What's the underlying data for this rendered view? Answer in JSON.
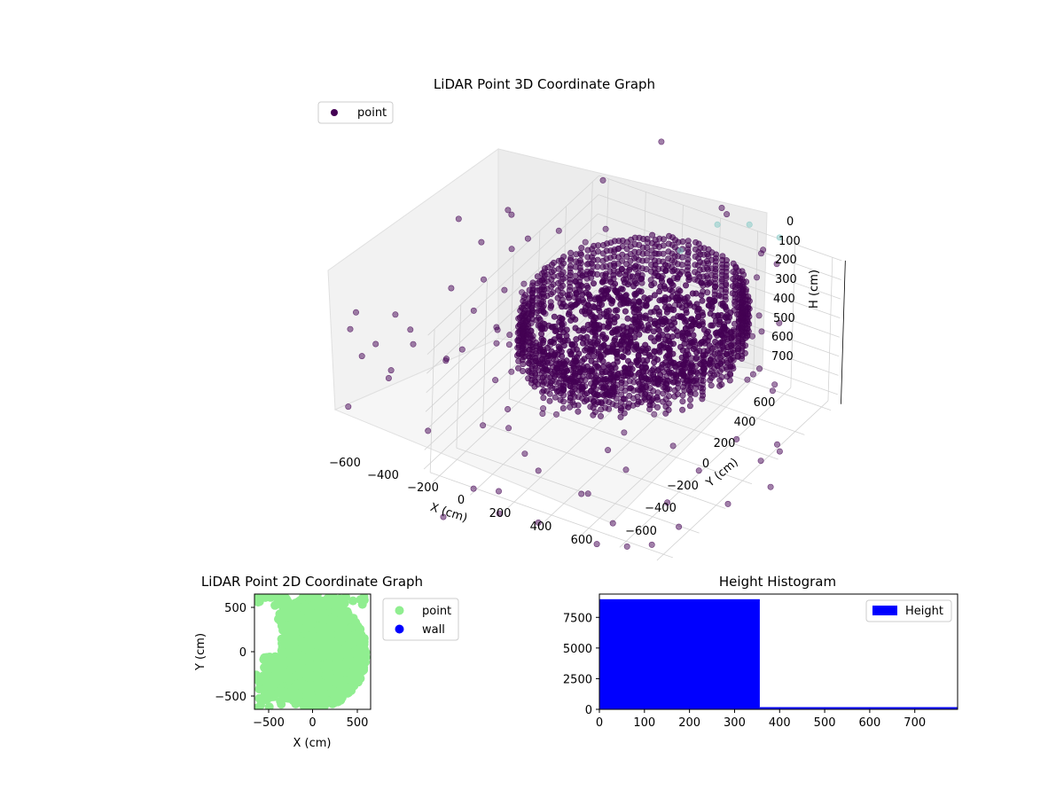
{
  "colors": {
    "point3d": "#440154",
    "point3d_far": "#7fc7c4",
    "point2d": "#90ee90",
    "wall": "#0000ff",
    "hist": "#0000ff"
  },
  "chart_data": [
    {
      "type": "scatter",
      "title": "LiDAR Point 3D Coordinate Graph",
      "xlabel": "X (cm)",
      "ylabel": "Y (cm)",
      "zlabel": "H (cm)",
      "x_ticks": [
        "−600",
        "−400",
        "−200",
        "0",
        "200",
        "400",
        "600"
      ],
      "y_ticks": [
        "−600",
        "−400",
        "−200",
        "0",
        "200",
        "400",
        "600"
      ],
      "z_ticks": [
        "0",
        "100",
        "200",
        "300",
        "400",
        "500",
        "600",
        "700"
      ],
      "xlim": [
        -650,
        650
      ],
      "ylim": [
        -650,
        650
      ],
      "zlim": [
        750,
        0
      ],
      "z_inverted": true,
      "grid": true,
      "legend": [
        {
          "label": "point"
        }
      ],
      "legend_position": "upper-left",
      "series": [
        {
          "name": "point",
          "points_description": "dense ring of points at radius ~500 cm spanning heights 0–300 cm, plus sparse outliers up to ~1000 cm radius"
        }
      ]
    },
    {
      "type": "scatter",
      "title": "LiDAR Point 2D Coordinate Graph",
      "xlabel": "X (cm)",
      "ylabel": "Y (cm)",
      "x_ticks": [
        "−500",
        "0",
        "500"
      ],
      "y_ticks": [
        "−500",
        "0",
        "500"
      ],
      "xlim": [
        -650,
        650
      ],
      "ylim": [
        -650,
        650
      ],
      "legend": [
        {
          "label": "point"
        },
        {
          "label": "wall"
        }
      ],
      "legend_position": "outside-right",
      "series": [
        {
          "name": "point",
          "region": "filled disc of radius ~600 cm centered near (0,0)"
        },
        {
          "name": "wall",
          "count": 0
        }
      ]
    },
    {
      "type": "bar",
      "title": "Height Histogram",
      "x_ticks": [
        "0",
        "100",
        "200",
        "300",
        "400",
        "500",
        "600",
        "700"
      ],
      "y_ticks": [
        "0",
        "2500",
        "5000",
        "7500"
      ],
      "xlim": [
        0,
        795
      ],
      "ylim": [
        0,
        9400
      ],
      "legend": [
        {
          "label": "Height"
        }
      ],
      "legend_position": "upper-right",
      "bins": [
        {
          "x0": 0,
          "x1": 356,
          "count": 8980
        },
        {
          "x0": 356,
          "x1": 795,
          "count": 180
        }
      ]
    }
  ]
}
